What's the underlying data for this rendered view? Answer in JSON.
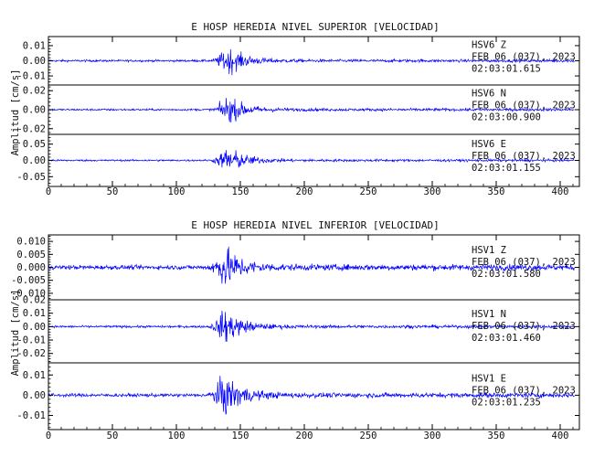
{
  "chart_data": [
    {
      "type": "line",
      "title": "E HOSP HEREDIA NIVEL SUPERIOR [VELOCIDAD]",
      "xlabel": "",
      "ylabel": "Amplitud [cm/s]",
      "xlim": [
        0,
        415
      ],
      "x_ticks": [
        "0",
        "50",
        "100",
        "150",
        "200",
        "250",
        "300",
        "350",
        "400"
      ],
      "grid": false,
      "color": "#0000ff",
      "traces": [
        {
          "name": "HSV6    Z",
          "date": "FEB 06 (037), 2023",
          "time": "02:03:01.615",
          "ylim": [
            -0.016,
            0.016
          ],
          "y_ticks": [
            "0.01",
            "0.00",
            "-0.01"
          ],
          "y_tick_values": [
            0.01,
            0.0,
            -0.01
          ],
          "noise_amplitude": 0.001,
          "peak_amplitude": 0.014,
          "event_onset": 126,
          "event_peak": 140
        },
        {
          "name": "HSV6    N",
          "date": "FEB 06 (037), 2023",
          "time": "02:03:00.900",
          "ylim": [
            -0.026,
            0.026
          ],
          "y_ticks": [
            "0.02",
            "0.00",
            "-0.02"
          ],
          "y_tick_values": [
            0.02,
            0.0,
            -0.02
          ],
          "noise_amplitude": 0.0015,
          "peak_amplitude": 0.022,
          "event_onset": 126,
          "event_peak": 140
        },
        {
          "name": "HSV6    E",
          "date": "FEB 06 (037), 2023",
          "time": "02:03:01.155",
          "ylim": [
            -0.08,
            0.08
          ],
          "y_ticks": [
            "0.05",
            "0.00",
            "-0.05"
          ],
          "y_tick_values": [
            0.05,
            0.0,
            -0.05
          ],
          "noise_amplitude": 0.004,
          "peak_amplitude": 0.065,
          "event_onset": 126,
          "event_peak": 140
        }
      ]
    },
    {
      "type": "line",
      "title": "E HOSP HEREDIA NIVEL INFERIOR [VELOCIDAD]",
      "xlabel": "",
      "ylabel": "Amplitud [cm/s]",
      "xlim": [
        0,
        415
      ],
      "x_ticks": [
        "0",
        "50",
        "100",
        "150",
        "200",
        "250",
        "300",
        "350",
        "400"
      ],
      "grid": false,
      "color": "#0000ff",
      "traces": [
        {
          "name": "HSV1    Z",
          "date": "FEB 06 (037), 2023",
          "time": "02:03:01.580",
          "ylim": [
            -0.0125,
            0.0125
          ],
          "y_ticks": [
            "0.010",
            "0.005",
            "0.000",
            "-0.005",
            "-0.010"
          ],
          "y_tick_values": [
            0.01,
            0.005,
            0.0,
            -0.005,
            -0.01
          ],
          "noise_amplitude": 0.0012,
          "peak_amplitude": 0.012,
          "event_onset": 122,
          "event_peak": 138
        },
        {
          "name": "HSV1    N",
          "date": "FEB 06 (037), 2023",
          "time": "02:03:01.460",
          "ylim": [
            -0.027,
            0.02
          ],
          "y_ticks": [
            "0.02",
            "0.01",
            "0.00",
            "-0.01",
            "-0.02"
          ],
          "y_tick_values": [
            0.02,
            0.01,
            0.0,
            -0.01,
            -0.02
          ],
          "noise_amplitude": 0.0012,
          "peak_amplitude": 0.02,
          "event_onset": 124,
          "event_peak": 138
        },
        {
          "name": "HSV1    E",
          "date": "FEB 06 (037), 2023",
          "time": "02:03:01.235",
          "ylim": [
            -0.017,
            0.016
          ],
          "y_ticks": [
            "0.01",
            "0.00",
            "-0.01"
          ],
          "y_tick_values": [
            0.01,
            0.0,
            -0.01
          ],
          "noise_amplitude": 0.0012,
          "peak_amplitude": 0.016,
          "event_onset": 122,
          "event_peak": 138
        }
      ]
    }
  ]
}
